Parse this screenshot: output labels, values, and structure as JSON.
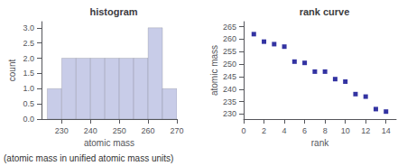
{
  "chart_data": [
    {
      "type": "histogram",
      "title": "histogram",
      "xlabel": "atomic mass",
      "ylabel": "count",
      "bins": [
        225,
        230,
        235,
        240,
        245,
        250,
        255,
        260,
        265,
        270
      ],
      "values": [
        1,
        2,
        2,
        2,
        2,
        2,
        2,
        3,
        1
      ],
      "color": "#c8cce8",
      "xlim": [
        223,
        270
      ],
      "ylim": [
        0,
        3.2
      ],
      "xticks": [
        230,
        240,
        250,
        260,
        270
      ],
      "yticks": [
        {
          "value": 0,
          "label": "0.0"
        },
        0.5,
        {
          "value": 1,
          "label": "1.0"
        },
        1.5,
        {
          "value": 2,
          "label": "2.0"
        },
        2.5,
        {
          "value": 3,
          "label": "3.0"
        }
      ],
      "grid": false,
      "annotations": [
        "(atomic mass in unified atomic mass units)"
      ]
    },
    {
      "type": "scatter",
      "title": "rank curve",
      "xlabel": "rank",
      "ylabel": "atomic mass",
      "x": [
        1,
        2,
        3,
        4,
        5,
        6,
        7,
        8,
        9,
        10,
        11,
        12,
        13,
        14
      ],
      "values": [
        262,
        259,
        258,
        257,
        251,
        250.5,
        247,
        247,
        244,
        243,
        238,
        237,
        232,
        231
      ],
      "color": "#00008b",
      "marker": "square",
      "xlim": [
        0,
        15
      ],
      "ylim": [
        228,
        267
      ],
      "xticks": [
        0,
        2,
        4,
        6,
        8,
        10,
        12,
        14
      ],
      "yticks": [
        230,
        235,
        240,
        245,
        250,
        255,
        260,
        265
      ],
      "grid": false
    }
  ]
}
